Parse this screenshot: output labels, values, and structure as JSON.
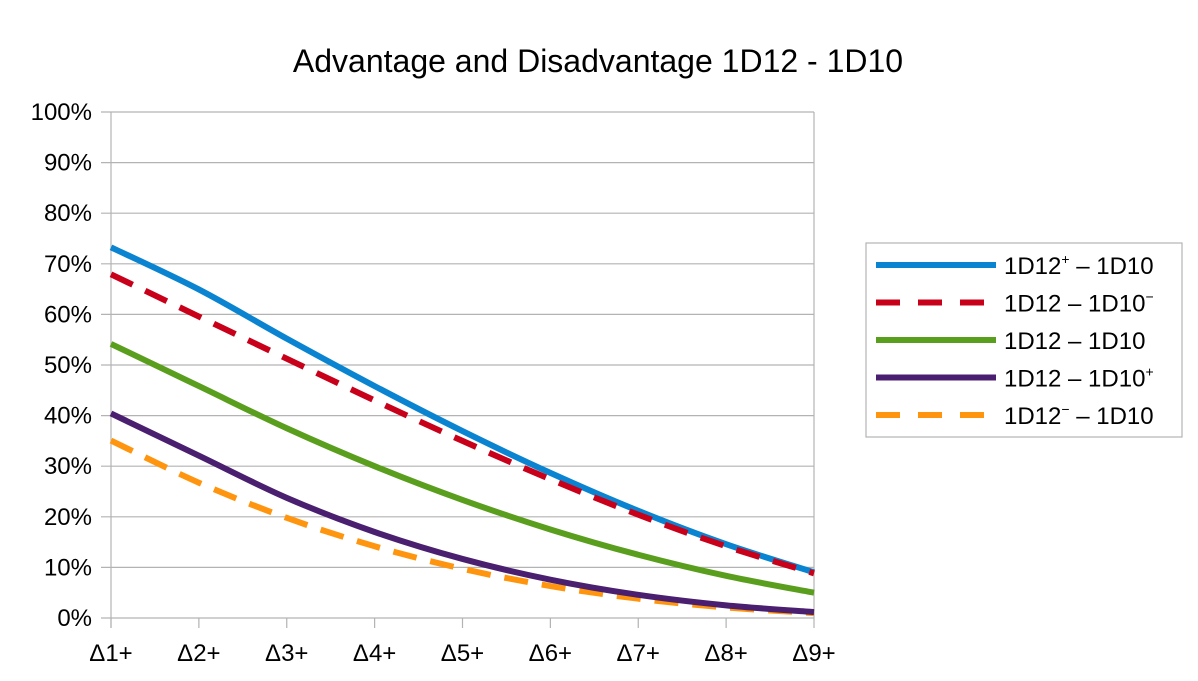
{
  "chart_data": {
    "type": "line",
    "title": "Advantage and Disadvantage 1D12 - 1D10",
    "xlabel": "",
    "ylabel": "",
    "categories": [
      "Δ1+",
      "Δ2+",
      "Δ3+",
      "Δ4+",
      "Δ5+",
      "Δ6+",
      "Δ7+",
      "Δ8+",
      "Δ9+"
    ],
    "ylim": [
      0,
      1
    ],
    "yticks": [
      0,
      0.1,
      0.2,
      0.3,
      0.4,
      0.5,
      0.6,
      0.7,
      0.8,
      0.9,
      1.0
    ],
    "ytick_labels": [
      "0%",
      "10%",
      "20%",
      "30%",
      "40%",
      "50%",
      "60%",
      "70%",
      "80%",
      "90%",
      "100%"
    ],
    "grid": true,
    "legend_position": "right",
    "series": [
      {
        "name": "1D12⁺ – 1D10",
        "base": "1D12",
        "sup": "+",
        "rest": " – 1D10",
        "color": "#0a84d0",
        "dashed": false,
        "values": [
          0.7326,
          0.6493,
          0.5521,
          0.4583,
          0.3694,
          0.2868,
          0.2118,
          0.1458,
          0.0903
        ]
      },
      {
        "name": "1D12 – 1D10⁻",
        "base": "1D12 – 1D10",
        "sup": "−",
        "rest": "",
        "color": "#c9001a",
        "dashed": true,
        "values": [
          0.6792,
          0.5958,
          0.5125,
          0.43,
          0.35,
          0.2742,
          0.2042,
          0.1417,
          0.0883
        ]
      },
      {
        "name": "1D12 – 1D10",
        "base": "1D12 – 1D10",
        "sup": "",
        "rest": "",
        "color": "#5a9e1e",
        "dashed": false,
        "values": [
          0.5417,
          0.4583,
          0.375,
          0.3,
          0.2333,
          0.175,
          0.125,
          0.0833,
          0.05
        ]
      },
      {
        "name": "1D12 – 1D10⁺",
        "base": "1D12 – 1D10",
        "sup": "+",
        "rest": "",
        "color": "#4b1f6f",
        "dashed": false,
        "values": [
          0.4042,
          0.3208,
          0.2375,
          0.17,
          0.1167,
          0.0758,
          0.0458,
          0.025,
          0.0117
        ]
      },
      {
        "name": "1D12⁻ – 1D10",
        "base": "1D12",
        "sup": "−",
        "rest": " – 1D10",
        "color": "#ff950e",
        "dashed": true,
        "values": [
          0.3507,
          0.2674,
          0.1979,
          0.1417,
          0.0972,
          0.0632,
          0.0382,
          0.0208,
          0.0097
        ]
      }
    ]
  }
}
